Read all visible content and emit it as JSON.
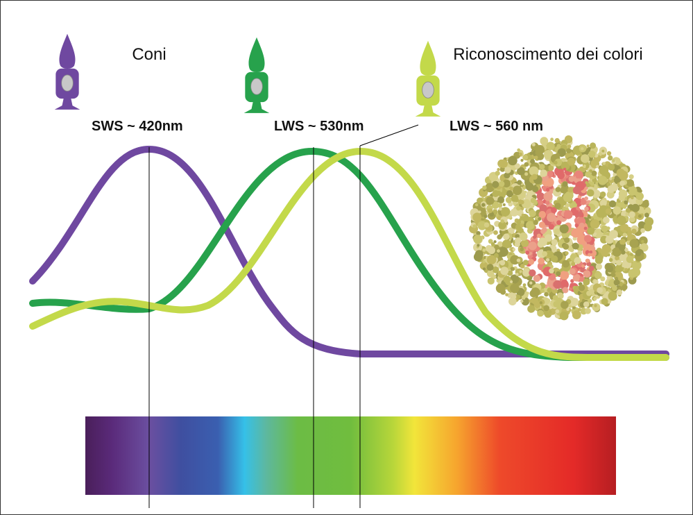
{
  "header": {
    "left": "Coni",
    "right": "Riconoscimento dei colori"
  },
  "cones": [
    {
      "label": "SWS ~ 420nm",
      "color": "#6f48a0"
    },
    {
      "label": "LWS ~ 530nm",
      "color": "#27a24c"
    },
    {
      "label": "LWS ~ 560 nm",
      "color": "#c3d94a"
    }
  ]
}
